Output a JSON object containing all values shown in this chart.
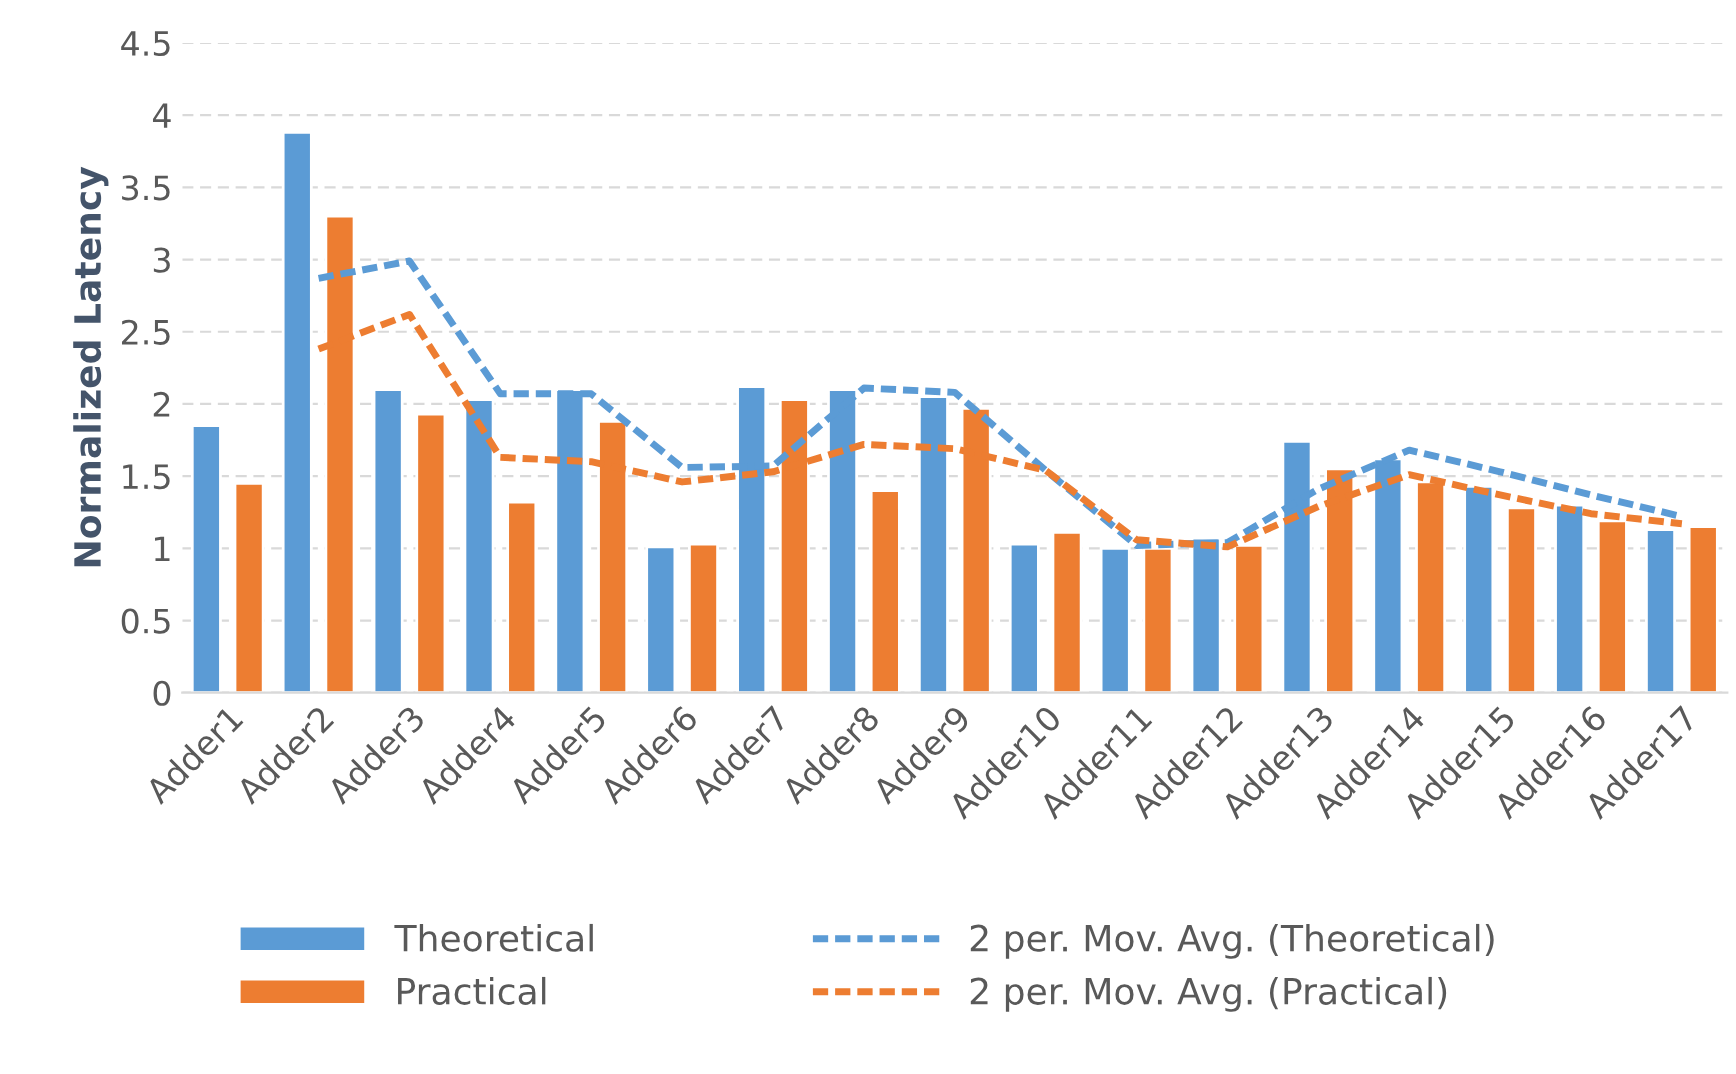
{
  "chart_data": {
    "type": "bar",
    "ylabel": "Normalized Latency",
    "categories": [
      "Adder1",
      "Adder2",
      "Adder3",
      "Adder4",
      "Adder5",
      "Adder6",
      "Adder7",
      "Adder8",
      "Adder9",
      "Adder10",
      "Adder11",
      "Adder12",
      "Adder13",
      "Adder14",
      "Adder15",
      "Adder16",
      "Adder17"
    ],
    "series": [
      {
        "name": "Theoretical",
        "color": "#5b9bd5",
        "values": [
          1.85,
          3.88,
          2.1,
          2.03,
          2.1,
          1.01,
          2.12,
          2.1,
          2.05,
          1.03,
          1.0,
          1.07,
          1.74,
          1.62,
          1.43,
          1.3,
          1.13
        ]
      },
      {
        "name": "Practical",
        "color": "#ed7d31",
        "values": [
          1.45,
          3.3,
          1.93,
          1.32,
          1.88,
          1.03,
          2.03,
          1.4,
          1.97,
          1.11,
          1.0,
          1.02,
          1.55,
          1.46,
          1.28,
          1.19,
          1.15
        ]
      },
      {
        "name": "2 per. Mov. Avg. (Theoretical)",
        "type": "line",
        "line_style": "dashed",
        "color": "#5b9bd5",
        "values": [
          null,
          2.87,
          2.99,
          2.07,
          2.07,
          1.56,
          1.57,
          2.11,
          2.08,
          1.54,
          1.02,
          1.04,
          1.41,
          1.68,
          1.53,
          1.37,
          1.22
        ]
      },
      {
        "name": "2 per. Mov. Avg. (Practical)",
        "type": "line",
        "line_style": "dashed",
        "color": "#ed7d31",
        "values": [
          null,
          2.38,
          2.62,
          1.63,
          1.6,
          1.46,
          1.53,
          1.72,
          1.69,
          1.54,
          1.06,
          1.01,
          1.29,
          1.51,
          1.37,
          1.24,
          1.17
        ]
      }
    ],
    "ylim": [
      0,
      4.5
    ],
    "yticks": [
      0,
      0.5,
      1,
      1.5,
      2,
      2.5,
      3,
      3.5,
      4,
      4.5
    ],
    "grid": "y",
    "legend": "bottom"
  }
}
